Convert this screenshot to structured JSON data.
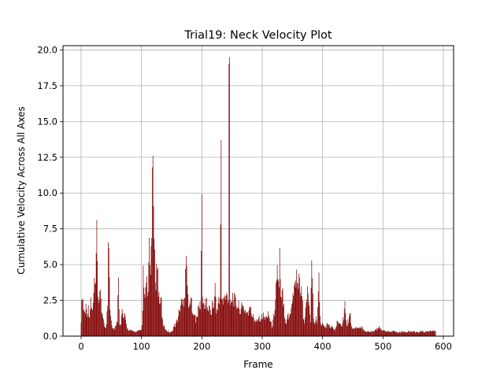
{
  "chart_data": {
    "type": "bar",
    "title": "Trial19: Neck Velocity Plot",
    "xlabel": "Frame",
    "ylabel": "Cumulative Velocity Across All Axes",
    "xlim": [
      -30,
      617
    ],
    "ylim": [
      0,
      20.3
    ],
    "x_ticks": [
      0,
      100,
      200,
      300,
      400,
      500,
      600
    ],
    "x_tick_labels": [
      "0",
      "100",
      "200",
      "300",
      "400",
      "500",
      "600"
    ],
    "y_ticks": [
      0,
      2.5,
      5,
      7.5,
      10,
      12.5,
      15,
      17.5,
      20
    ],
    "y_tick_labels": [
      "0.0",
      "2.5",
      "5.0",
      "7.5",
      "10.0",
      "12.5",
      "15.0",
      "17.5",
      "20.0"
    ],
    "grid": true,
    "bar_color": "#800000",
    "profile": [
      [
        0,
        1.2
      ],
      [
        2,
        3.1
      ],
      [
        4,
        2.0
      ],
      [
        6,
        1.6
      ],
      [
        8,
        2.1
      ],
      [
        10,
        1.7
      ],
      [
        12,
        1.9
      ],
      [
        14,
        1.5
      ],
      [
        16,
        2.3
      ],
      [
        18,
        1.8
      ],
      [
        20,
        2.1
      ],
      [
        22,
        3.8
      ],
      [
        24,
        3.2
      ],
      [
        25,
        5.4
      ],
      [
        26,
        8.1
      ],
      [
        27,
        4.3
      ],
      [
        28,
        2.4
      ],
      [
        30,
        2.1
      ],
      [
        32,
        3.6
      ],
      [
        34,
        1.9
      ],
      [
        36,
        1.1
      ],
      [
        38,
        0.9
      ],
      [
        40,
        0.6
      ],
      [
        42,
        0.8
      ],
      [
        44,
        2.3
      ],
      [
        45,
        5.8
      ],
      [
        46,
        6.8
      ],
      [
        47,
        4.1
      ],
      [
        48,
        2.2
      ],
      [
        50,
        1.2
      ],
      [
        52,
        0.6
      ],
      [
        55,
        0.5
      ],
      [
        58,
        0.7
      ],
      [
        60,
        1.1
      ],
      [
        61,
        3.5
      ],
      [
        62,
        3.6
      ],
      [
        63,
        2.4
      ],
      [
        64,
        1.0
      ],
      [
        66,
        0.8
      ],
      [
        68,
        1.8
      ],
      [
        70,
        1.2
      ],
      [
        72,
        1.4
      ],
      [
        74,
        1.0
      ],
      [
        76,
        0.6
      ],
      [
        80,
        0.4
      ],
      [
        85,
        0.35
      ],
      [
        90,
        0.3
      ],
      [
        95,
        0.35
      ],
      [
        100,
        0.4
      ],
      [
        102,
        1.5
      ],
      [
        103,
        4.3
      ],
      [
        105,
        2.5
      ],
      [
        107,
        3.3
      ],
      [
        109,
        3.5
      ],
      [
        111,
        2.9
      ],
      [
        113,
        5.7
      ],
      [
        115,
        4.2
      ],
      [
        116,
        6.2
      ],
      [
        117,
        8.4
      ],
      [
        118,
        11.8
      ],
      [
        119,
        12.6
      ],
      [
        120,
        9.1
      ],
      [
        121,
        6.1
      ],
      [
        122,
        5.0
      ],
      [
        124,
        4.1
      ],
      [
        126,
        5.1
      ],
      [
        128,
        3.4
      ],
      [
        130,
        2.2
      ],
      [
        132,
        3.1
      ],
      [
        134,
        1.3
      ],
      [
        136,
        0.8
      ],
      [
        138,
        0.6
      ],
      [
        140,
        0.5
      ],
      [
        143,
        0.35
      ],
      [
        146,
        0.3
      ],
      [
        150,
        0.3
      ],
      [
        153,
        0.6
      ],
      [
        156,
        0.8
      ],
      [
        158,
        1.0
      ],
      [
        160,
        1.2
      ],
      [
        163,
        1.8
      ],
      [
        166,
        2.4
      ],
      [
        168,
        2.2
      ],
      [
        170,
        2.6
      ],
      [
        172,
        3.2
      ],
      [
        173,
        5.4
      ],
      [
        174,
        5.6
      ],
      [
        175,
        5.2
      ],
      [
        176,
        3.1
      ],
      [
        178,
        2.5
      ],
      [
        180,
        2.0
      ],
      [
        182,
        2.5
      ],
      [
        185,
        1.9
      ],
      [
        188,
        1.5
      ],
      [
        190,
        1.0
      ],
      [
        192,
        1.4
      ],
      [
        194,
        1.8
      ],
      [
        196,
        2.1
      ],
      [
        198,
        2.2
      ],
      [
        200,
        9.9
      ],
      [
        201,
        2.4
      ],
      [
        203,
        2.2
      ],
      [
        206,
        2.4
      ],
      [
        209,
        2.1
      ],
      [
        212,
        1.9
      ],
      [
        215,
        1.7
      ],
      [
        218,
        2.3
      ],
      [
        220,
        2.1
      ],
      [
        222,
        3.4
      ],
      [
        224,
        1.6
      ],
      [
        226,
        2.2
      ],
      [
        228,
        2.4
      ],
      [
        230,
        2.3
      ],
      [
        232,
        13.7
      ],
      [
        233,
        2.5
      ],
      [
        235,
        2.3
      ],
      [
        238,
        2.7
      ],
      [
        240,
        2.6
      ],
      [
        242,
        2.9
      ],
      [
        244,
        2.7
      ],
      [
        245,
        19.0
      ],
      [
        246,
        19.5
      ],
      [
        247,
        2.7
      ],
      [
        249,
        2.5
      ],
      [
        251,
        2.8
      ],
      [
        253,
        2.6
      ],
      [
        256,
        2.3
      ],
      [
        260,
        2.1
      ],
      [
        264,
        1.9
      ],
      [
        268,
        2.0
      ],
      [
        272,
        1.8
      ],
      [
        276,
        1.6
      ],
      [
        280,
        1.9
      ],
      [
        284,
        1.4
      ],
      [
        288,
        1.1
      ],
      [
        291,
        1.2
      ],
      [
        294,
        1.3
      ],
      [
        298,
        1.3
      ],
      [
        302,
        1.4
      ],
      [
        306,
        1.2
      ],
      [
        310,
        1.7
      ],
      [
        313,
        1.1
      ],
      [
        316,
        0.7
      ],
      [
        318,
        1.0
      ],
      [
        320,
        1.6
      ],
      [
        322,
        2.9
      ],
      [
        324,
        4.1
      ],
      [
        325,
        4.6
      ],
      [
        326,
        4.4
      ],
      [
        327,
        3.5
      ],
      [
        328,
        3.2
      ],
      [
        329,
        5.4
      ],
      [
        330,
        3.4
      ],
      [
        332,
        2.4
      ],
      [
        334,
        3.1
      ],
      [
        336,
        2.1
      ],
      [
        338,
        1.2
      ],
      [
        340,
        1.0
      ],
      [
        342,
        1.6
      ],
      [
        344,
        1.2
      ],
      [
        346,
        1.5
      ],
      [
        348,
        2.2
      ],
      [
        350,
        2.6
      ],
      [
        352,
        3.2
      ],
      [
        354,
        3.5
      ],
      [
        356,
        4.1
      ],
      [
        358,
        4.3
      ],
      [
        360,
        3.5
      ],
      [
        362,
        4.1
      ],
      [
        364,
        3.2
      ],
      [
        366,
        2.8
      ],
      [
        368,
        1.5
      ],
      [
        370,
        1.1
      ],
      [
        372,
        1.7
      ],
      [
        374,
        2.8
      ],
      [
        376,
        3.1
      ],
      [
        378,
        1.8
      ],
      [
        380,
        1.2
      ],
      [
        382,
        4.4
      ],
      [
        383,
        3.7
      ],
      [
        385,
        1.4
      ],
      [
        387,
        0.7
      ],
      [
        389,
        1.2
      ],
      [
        391,
        1.0
      ],
      [
        393,
        3.6
      ],
      [
        394,
        4.0
      ],
      [
        395,
        2.1
      ],
      [
        397,
        0.9
      ],
      [
        400,
        0.8
      ],
      [
        404,
        0.6
      ],
      [
        408,
        0.8
      ],
      [
        412,
        0.7
      ],
      [
        416,
        0.6
      ],
      [
        420,
        0.4
      ],
      [
        424,
        0.9
      ],
      [
        428,
        1.1
      ],
      [
        432,
        0.8
      ],
      [
        435,
        1.4
      ],
      [
        437,
        2.3
      ],
      [
        440,
        0.7
      ],
      [
        443,
        1.1
      ],
      [
        445,
        2.0
      ],
      [
        447,
        0.8
      ],
      [
        450,
        0.5
      ],
      [
        455,
        0.6
      ],
      [
        460,
        0.5
      ],
      [
        465,
        0.6
      ],
      [
        470,
        0.4
      ],
      [
        475,
        0.3
      ],
      [
        480,
        0.3
      ],
      [
        485,
        0.4
      ],
      [
        490,
        0.5
      ],
      [
        494,
        0.6
      ],
      [
        497,
        0.4
      ],
      [
        500,
        0.45
      ],
      [
        505,
        0.3
      ],
      [
        510,
        0.3
      ],
      [
        515,
        0.35
      ],
      [
        520,
        0.3
      ],
      [
        525,
        0.25
      ],
      [
        530,
        0.3
      ],
      [
        535,
        0.28
      ],
      [
        540,
        0.3
      ],
      [
        545,
        0.32
      ],
      [
        550,
        0.3
      ],
      [
        555,
        0.28
      ],
      [
        560,
        0.3
      ],
      [
        565,
        0.32
      ],
      [
        570,
        0.3
      ],
      [
        575,
        0.33
      ],
      [
        580,
        0.35
      ],
      [
        583,
        0.42
      ],
      [
        585,
        0.38
      ],
      [
        587,
        0.3
      ],
      [
        588,
        0.0
      ]
    ]
  }
}
